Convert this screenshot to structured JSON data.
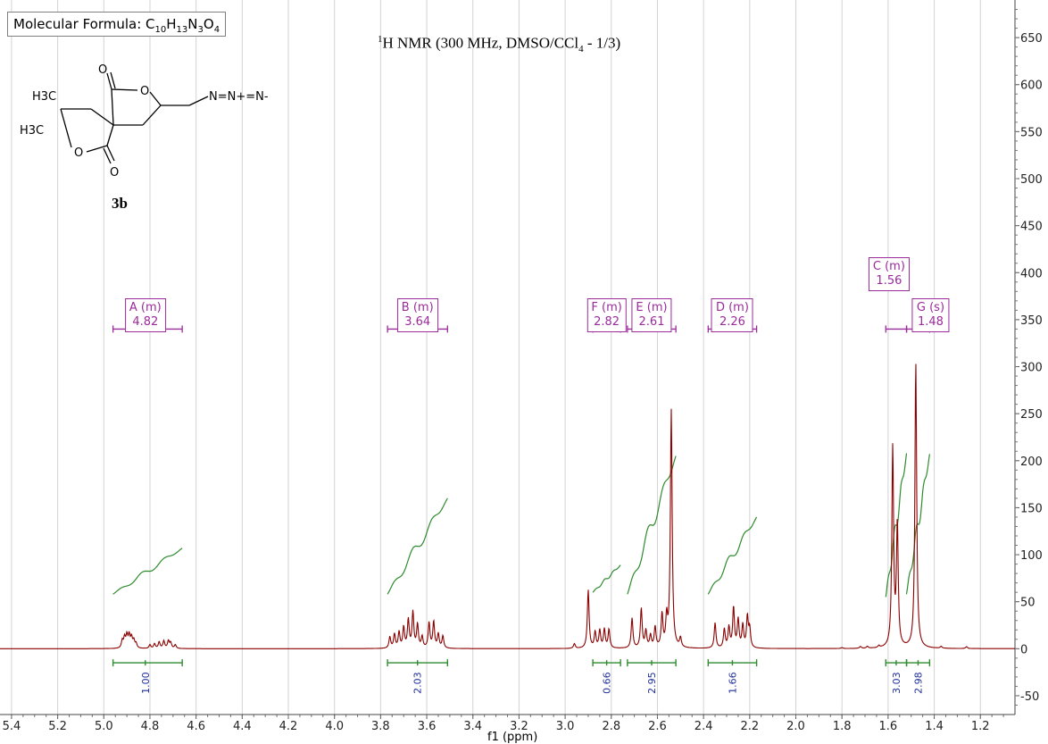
{
  "formula": {
    "prefix": "Molecular Formula: C",
    "c": "10",
    "h": "13",
    "n": "3",
    "o": "4",
    "h_sym": "H",
    "n_sym": "N",
    "o_sym": "O"
  },
  "title": {
    "iso": "1",
    "text": "H NMR (300 MHz, DMSO/CCl",
    "sub": "4",
    "rest": " - 1/3)"
  },
  "compound": {
    "label": "3b",
    "atoms": {
      "me1": "H3C",
      "me2": "H3C",
      "o_ring1": "O",
      "o_ring2": "O",
      "o_carbonyl1": "O",
      "o_carbonyl2": "O",
      "azide": "N=N+=N-"
    }
  },
  "colors": {
    "spectrum": "#8b0000",
    "integral": "#2e8b2e",
    "multiplet": "#9b2a9b",
    "integral_label": "#1f2f9a",
    "grid": "#d3d3d3"
  },
  "chart_data": {
    "type": "line",
    "title": "1H NMR (300 MHz, DMSO/CCl4 - 1/3)",
    "xlabel": "f1 (ppm)",
    "ylabel": "",
    "x_reversed": true,
    "xlim": [
      5.45,
      1.05
    ],
    "ylim": [
      -70,
      690
    ],
    "x_ticks": [
      "5.4",
      "5.2",
      "5.0",
      "4.8",
      "4.6",
      "4.4",
      "4.2",
      "4.0",
      "3.8",
      "3.6",
      "3.4",
      "3.2",
      "3.0",
      "2.8",
      "2.6",
      "2.4",
      "2.2",
      "2.0",
      "1.8",
      "1.6",
      "1.4",
      "1.2"
    ],
    "y_ticks": [
      "-50",
      "0",
      "50",
      "100",
      "150",
      "200",
      "250",
      "300",
      "350",
      "400",
      "450",
      "500",
      "550",
      "600",
      "650"
    ],
    "peaks": [
      {
        "ppm": 4.92,
        "h": 8
      },
      {
        "ppm": 4.91,
        "h": 11
      },
      {
        "ppm": 4.9,
        "h": 13
      },
      {
        "ppm": 4.89,
        "h": 13
      },
      {
        "ppm": 4.88,
        "h": 11
      },
      {
        "ppm": 4.87,
        "h": 8
      },
      {
        "ppm": 4.86,
        "h": 5
      },
      {
        "ppm": 4.8,
        "h": 4
      },
      {
        "ppm": 4.78,
        "h": 5
      },
      {
        "ppm": 4.76,
        "h": 7
      },
      {
        "ppm": 4.74,
        "h": 8
      },
      {
        "ppm": 4.72,
        "h": 8
      },
      {
        "ppm": 4.71,
        "h": 6
      },
      {
        "ppm": 4.69,
        "h": 4
      },
      {
        "ppm": 3.76,
        "h": 12
      },
      {
        "ppm": 3.74,
        "h": 15
      },
      {
        "ppm": 3.72,
        "h": 17
      },
      {
        "ppm": 3.7,
        "h": 22
      },
      {
        "ppm": 3.68,
        "h": 30
      },
      {
        "ppm": 3.66,
        "h": 38
      },
      {
        "ppm": 3.64,
        "h": 25
      },
      {
        "ppm": 3.62,
        "h": 12
      },
      {
        "ppm": 3.59,
        "h": 27
      },
      {
        "ppm": 3.57,
        "h": 28
      },
      {
        "ppm": 3.55,
        "h": 15
      },
      {
        "ppm": 3.53,
        "h": 13
      },
      {
        "ppm": 2.96,
        "h": 5
      },
      {
        "ppm": 2.9,
        "h": 62
      },
      {
        "ppm": 2.87,
        "h": 17
      },
      {
        "ppm": 2.85,
        "h": 19
      },
      {
        "ppm": 2.83,
        "h": 20
      },
      {
        "ppm": 2.81,
        "h": 20
      },
      {
        "ppm": 2.71,
        "h": 32
      },
      {
        "ppm": 2.67,
        "h": 42
      },
      {
        "ppm": 2.65,
        "h": 18
      },
      {
        "ppm": 2.63,
        "h": 13
      },
      {
        "ppm": 2.61,
        "h": 22
      },
      {
        "ppm": 2.58,
        "h": 35
      },
      {
        "ppm": 2.56,
        "h": 30
      },
      {
        "ppm": 2.54,
        "h": 253
      },
      {
        "ppm": 2.5,
        "h": 10
      },
      {
        "ppm": 2.35,
        "h": 27
      },
      {
        "ppm": 2.31,
        "h": 20
      },
      {
        "ppm": 2.29,
        "h": 22
      },
      {
        "ppm": 2.27,
        "h": 43
      },
      {
        "ppm": 2.25,
        "h": 30
      },
      {
        "ppm": 2.23,
        "h": 24
      },
      {
        "ppm": 2.21,
        "h": 33
      },
      {
        "ppm": 2.2,
        "h": 20
      },
      {
        "ppm": 1.8,
        "h": 1
      },
      {
        "ppm": 1.72,
        "h": 2
      },
      {
        "ppm": 1.69,
        "h": 2
      },
      {
        "ppm": 1.64,
        "h": 2
      },
      {
        "ppm": 1.58,
        "h": 212
      },
      {
        "ppm": 1.56,
        "h": 130
      },
      {
        "ppm": 1.48,
        "h": 305
      },
      {
        "ppm": 1.37,
        "h": 2
      },
      {
        "ppm": 1.26,
        "h": 2
      }
    ],
    "integrals": [
      {
        "from": 4.96,
        "to": 4.66,
        "y0": 58,
        "y1": 107,
        "value": "1.00",
        "center": 4.82
      },
      {
        "from": 3.77,
        "to": 3.51,
        "y0": 58,
        "y1": 160,
        "value": "2.03",
        "center": 3.64
      },
      {
        "from": 2.88,
        "to": 2.76,
        "y0": 60,
        "y1": 89,
        "value": "0.66",
        "center": 2.82
      },
      {
        "from": 2.73,
        "to": 2.52,
        "y0": 58,
        "y1": 205,
        "value": "2.95",
        "center": 2.625
      },
      {
        "from": 2.38,
        "to": 2.17,
        "y0": 58,
        "y1": 140,
        "value": "1.66",
        "center": 2.275
      },
      {
        "from": 1.61,
        "to": 1.52,
        "y0": 55,
        "y1": 208,
        "value": "3.03",
        "center": 1.565
      },
      {
        "from": 1.52,
        "to": 1.42,
        "y0": 58,
        "y1": 207,
        "value": "2.98",
        "center": 1.47
      }
    ],
    "multiplets": [
      {
        "label": "A (m)",
        "shift": "4.82",
        "from": 4.96,
        "to": 4.66,
        "center": 4.82
      },
      {
        "label": "B (m)",
        "shift": "3.64",
        "from": 3.77,
        "to": 3.51,
        "center": 3.64
      },
      {
        "label": "F (m)",
        "shift": "2.82",
        "from": 2.88,
        "to": 2.76,
        "center": 2.82
      },
      {
        "label": "E (m)",
        "shift": "2.61",
        "from": 2.73,
        "to": 2.52,
        "center": 2.625
      },
      {
        "label": "D (m)",
        "shift": "2.26",
        "from": 2.38,
        "to": 2.17,
        "center": 2.275
      },
      {
        "label": "C (m)",
        "shift": "1.56",
        "from": 1.61,
        "to": 1.52,
        "center": 1.565
      },
      {
        "label": "G (s)",
        "shift": "1.48",
        "from": 1.52,
        "to": 1.42,
        "center": 1.47
      }
    ]
  }
}
